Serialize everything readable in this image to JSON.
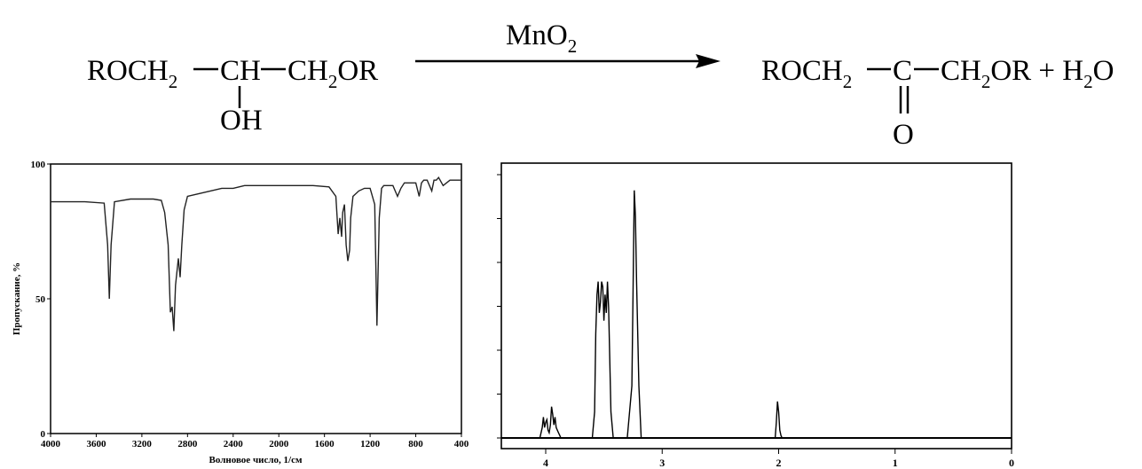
{
  "reaction": {
    "reactant_left": "ROCH",
    "reactant_sub": "2",
    "reactant_ch": "CH",
    "reactant_right_ch": "CH",
    "reactant_right_sub": "2",
    "reactant_right_or": "OR",
    "reactant_oh": "OH",
    "reagent_mn": "MnO",
    "reagent_sub": "2",
    "product_left": "ROCH",
    "product_sub": "2",
    "product_c": "C",
    "product_right_ch": "CH",
    "product_right_sub": "2",
    "product_right_or": "OR + H",
    "product_water_sub": "2",
    "product_water_o": "O",
    "product_o": "O"
  },
  "chart_data": [
    {
      "type": "line",
      "xlabel": "Волновое число, 1/см",
      "ylabel": "Пропускание, %",
      "xlim": [
        4000,
        400
      ],
      "ylim": [
        0,
        100
      ],
      "x_ticks": [
        4000,
        3600,
        3200,
        2800,
        2400,
        2000,
        1600,
        1200,
        800,
        400
      ],
      "x_tick_labels": [
        "4000",
        "3600",
        "3200",
        "2800",
        "2400",
        "2000",
        "1600",
        "1200",
        "800",
        "400"
      ],
      "y_ticks": [
        0,
        50,
        100
      ],
      "y_tick_labels": [
        "0",
        "50",
        "100"
      ],
      "series": [
        {
          "x": [
            4000,
            3700,
            3530,
            3500,
            3485,
            3470,
            3440,
            3300,
            3100,
            3030,
            3000,
            2970,
            2950,
            2935,
            2920,
            2905,
            2880,
            2865,
            2850,
            2830,
            2800,
            2700,
            2500,
            2400,
            2300,
            2100,
            1900,
            1700,
            1560,
            1500,
            1480,
            1465,
            1450,
            1440,
            1425,
            1410,
            1395,
            1380,
            1370,
            1350,
            1300,
            1250,
            1200,
            1160,
            1140,
            1120,
            1100,
            1080,
            1050,
            1000,
            960,
            930,
            900,
            860,
            800,
            770,
            750,
            730,
            700,
            660,
            640,
            620,
            600,
            560,
            500,
            450,
            400
          ],
          "y": [
            86,
            86,
            85.5,
            70,
            50,
            70,
            86,
            87,
            87,
            86.5,
            82,
            70,
            45,
            47,
            38,
            55,
            65,
            58,
            70,
            83,
            88,
            89,
            91,
            91,
            92,
            92,
            92,
            92,
            91.5,
            88,
            74,
            80,
            73,
            82,
            85,
            70,
            64,
            68,
            80,
            88,
            90,
            91,
            91,
            85,
            40,
            80,
            91,
            92,
            92,
            92,
            88,
            91,
            93,
            93,
            93,
            88,
            93,
            94,
            94,
            90,
            94,
            94,
            95,
            92,
            94,
            94,
            94
          ]
        }
      ]
    },
    {
      "type": "line",
      "xlim": [
        4,
        0
      ],
      "ylim": [
        0,
        100
      ],
      "x_ticks": [
        4,
        3,
        2,
        1,
        0
      ],
      "x_tick_labels": [
        "4",
        "3",
        "2",
        "1",
        "0"
      ],
      "series": [
        {
          "x": [
            4.2,
            4.05,
            4.03,
            4.02,
            4.01,
            4.0,
            3.99,
            3.98,
            3.97,
            3.96,
            3.95,
            3.94,
            3.93,
            3.92,
            3.91,
            3.9,
            3.89,
            3.88,
            3.87,
            3.85,
            3.7,
            3.6,
            3.58,
            3.57,
            3.56,
            3.55,
            3.54,
            3.53,
            3.52,
            3.51,
            3.5,
            3.49,
            3.48,
            3.47,
            3.46,
            3.45,
            3.44,
            3.42,
            3.35,
            3.3,
            3.26,
            3.25,
            3.24,
            3.23,
            3.22,
            3.21,
            3.2,
            3.18,
            3.1,
            2.5,
            2.03,
            2.02,
            2.01,
            2.0,
            1.99,
            1.98,
            1.97,
            1.95,
            1.5,
            1.0,
            0.5,
            0.0
          ],
          "y": [
            0,
            0,
            4,
            8,
            4,
            6,
            7,
            3,
            2,
            5,
            12,
            9,
            5,
            8,
            4,
            3,
            2,
            1,
            0,
            0,
            0,
            0,
            10,
            40,
            55,
            60,
            48,
            52,
            60,
            58,
            45,
            55,
            48,
            60,
            50,
            30,
            10,
            0,
            0,
            0,
            20,
            55,
            95,
            85,
            60,
            40,
            20,
            0,
            0,
            0,
            0,
            6,
            14,
            10,
            3,
            1,
            0,
            0,
            0,
            0,
            0,
            0
          ]
        }
      ]
    }
  ]
}
